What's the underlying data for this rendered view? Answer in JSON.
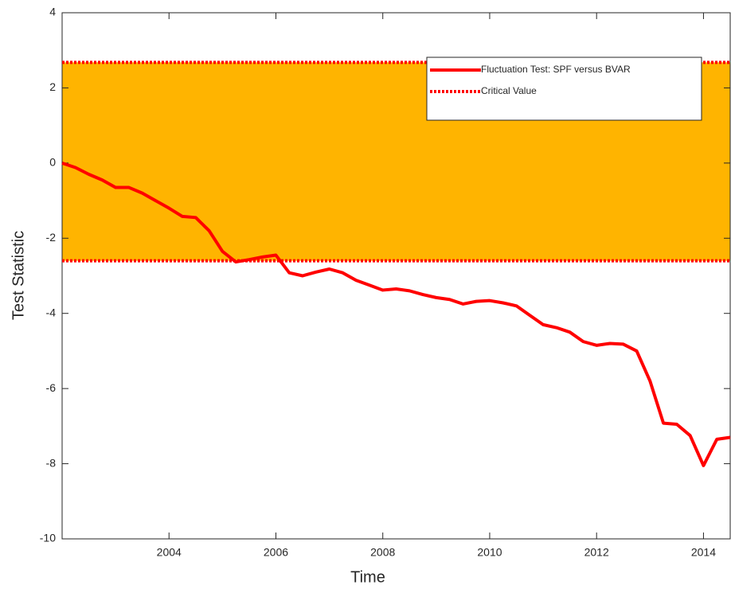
{
  "chart_data": {
    "type": "line",
    "xlabel": "Time",
    "ylabel": "Test Statistic",
    "x": [
      2002,
      2002.25,
      2002.5,
      2002.75,
      2003,
      2003.25,
      2003.5,
      2003.75,
      2004,
      2004.25,
      2004.5,
      2004.75,
      2005,
      2005.25,
      2005.5,
      2005.75,
      2006,
      2006.25,
      2006.5,
      2006.75,
      2007,
      2007.25,
      2007.5,
      2007.75,
      2008,
      2008.25,
      2008.5,
      2008.75,
      2009,
      2009.25,
      2009.5,
      2009.75,
      2010,
      2010.25,
      2010.5,
      2010.75,
      2011,
      2011.25,
      2011.5,
      2011.75,
      2012,
      2012.25,
      2012.5,
      2012.75,
      2013,
      2013.25,
      2013.5,
      2013.75,
      2014,
      2014.25,
      2014.5
    ],
    "series": [
      {
        "name": "Fluctuation Test: SPF versus BVAR",
        "color": "#ff0000",
        "values": [
          0,
          -0.12,
          -0.3,
          -0.45,
          -0.65,
          -0.65,
          -0.8,
          -1.0,
          -1.2,
          -1.42,
          -1.45,
          -1.8,
          -2.35,
          -2.63,
          -2.57,
          -2.5,
          -2.45,
          -2.92,
          -3.0,
          -2.9,
          -2.82,
          -2.92,
          -3.12,
          -3.25,
          -3.38,
          -3.35,
          -3.4,
          -3.5,
          -3.58,
          -3.63,
          -3.75,
          -3.68,
          -3.66,
          -3.72,
          -3.8,
          -4.05,
          -4.3,
          -4.38,
          -4.5,
          -4.75,
          -4.85,
          -4.8,
          -4.82,
          -5.0,
          -5.8,
          -6.92,
          -6.95,
          -7.25,
          -8.05,
          -7.35,
          -7.3
        ]
      }
    ],
    "critical_value": {
      "name": "Critical Value",
      "color": "#ff0000",
      "upper": 2.68,
      "lower": -2.6,
      "shade_color": "#ffb400"
    },
    "xlim": [
      2002,
      2014.5
    ],
    "xticks": [
      2004,
      2006,
      2008,
      2010,
      2012,
      2014
    ],
    "ylim": [
      -10,
      4
    ],
    "yticks": [
      -10,
      -8,
      -6,
      -4,
      -2,
      0,
      2,
      4
    ]
  }
}
